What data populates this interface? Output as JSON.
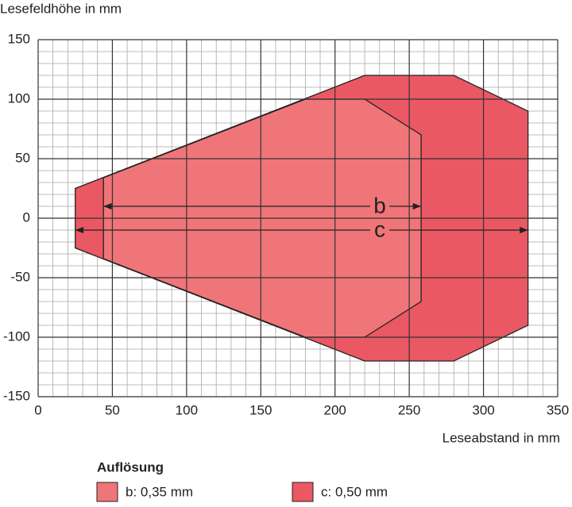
{
  "chart_data": {
    "type": "area",
    "y_axis_label": "Lesefeldhöhe in mm",
    "x_axis_label": "Leseabstand in mm",
    "legend_title": "Auflösung",
    "xlim": [
      0,
      350
    ],
    "ylim": [
      -150,
      150
    ],
    "xticks": [
      0,
      50,
      100,
      150,
      200,
      250,
      300,
      350
    ],
    "yticks": [
      150,
      100,
      50,
      0,
      -50,
      -100,
      -150
    ],
    "x_minor_ticks": [
      10,
      20,
      30,
      40,
      60,
      70,
      80,
      90,
      110,
      120,
      130,
      140,
      160,
      170,
      180,
      190,
      210,
      220,
      230,
      240,
      260,
      270,
      280,
      290,
      310,
      320,
      330,
      340
    ],
    "y_minor_ticks": [
      140,
      130,
      120,
      110,
      90,
      80,
      70,
      60,
      40,
      30,
      20,
      10,
      -10,
      -20,
      -30,
      -40,
      -60,
      -70,
      -80,
      -90,
      -110,
      -120,
      -130,
      -140
    ],
    "grid": true,
    "series": [
      {
        "name": "c: 0,50 mm",
        "label": "c",
        "color": "#ea5864",
        "x": [
          25,
          220,
          280,
          330,
          330,
          280,
          220,
          25
        ],
        "y": [
          25,
          120,
          120,
          90,
          -90,
          -120,
          -120,
          -25
        ]
      },
      {
        "name": "b: 0,35 mm",
        "label": "b",
        "color": "#f07579",
        "x": [
          44,
          180,
          220,
          258,
          258,
          220,
          180,
          44
        ],
        "y": [
          34,
          100,
          100,
          70,
          -70,
          -100,
          -100,
          -34
        ]
      }
    ]
  }
}
